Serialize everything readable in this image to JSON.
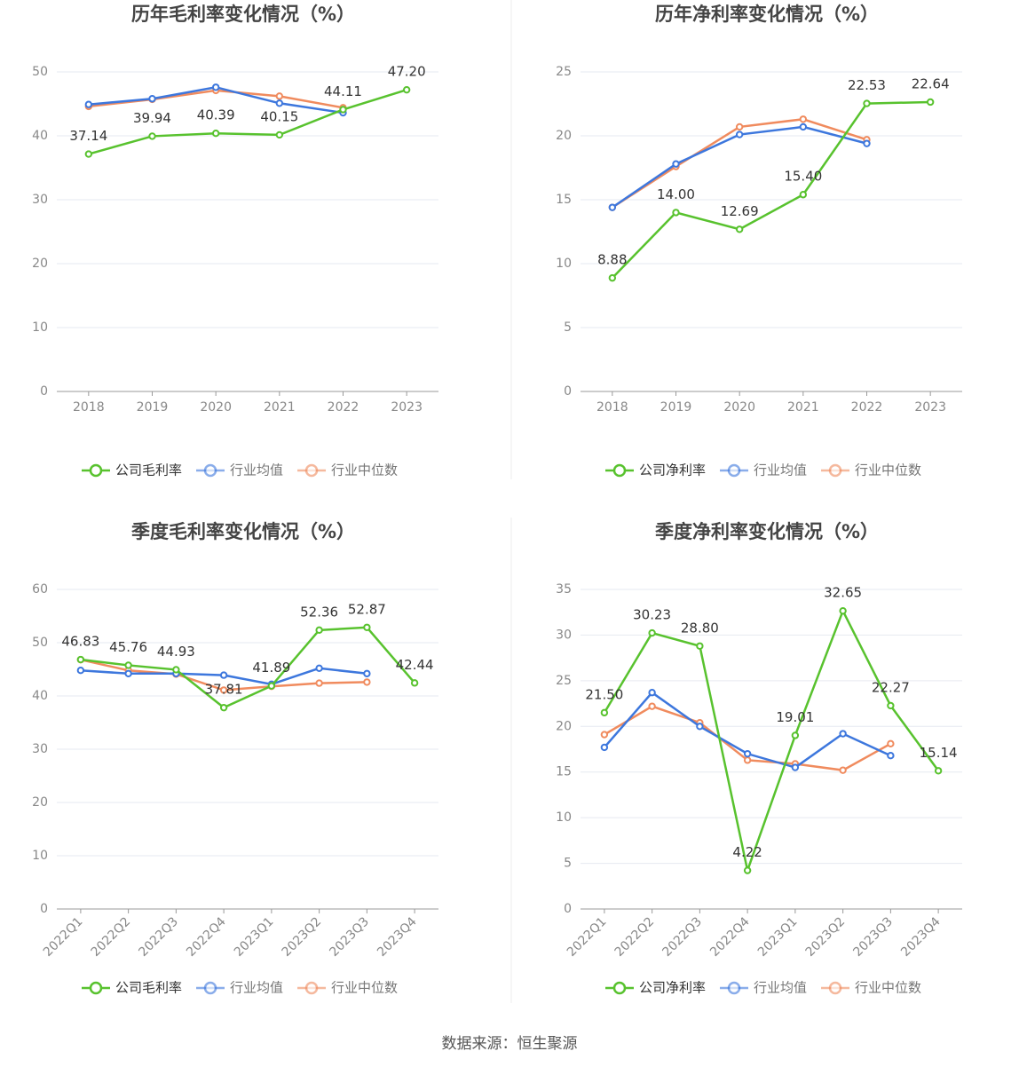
{
  "chart_data": [
    {
      "type": "line",
      "title": "历年毛利率变化情况（%）",
      "categories": [
        "2018",
        "2019",
        "2020",
        "2021",
        "2022",
        "2023"
      ],
      "ylim": [
        0,
        50
      ],
      "yticks": [
        0,
        10,
        20,
        30,
        40,
        50
      ],
      "grid": true,
      "series": [
        {
          "name": "公司毛利率",
          "color": "#58c22e",
          "values": [
            37.14,
            39.94,
            40.39,
            40.15,
            44.11,
            47.2
          ],
          "value_labels": [
            "37.14",
            "39.94",
            "40.39",
            "40.15",
            "44.11",
            "47.20"
          ]
        },
        {
          "name": "行业均值",
          "color": "#3d77dd",
          "values": [
            44.9,
            45.8,
            47.6,
            45.1,
            43.6,
            null
          ]
        },
        {
          "name": "行业中位数",
          "color": "#f08b5e",
          "values": [
            44.6,
            45.7,
            47.1,
            46.2,
            44.4,
            null
          ]
        }
      ]
    },
    {
      "type": "line",
      "title": "历年净利率变化情况（%）",
      "categories": [
        "2018",
        "2019",
        "2020",
        "2021",
        "2022",
        "2023"
      ],
      "ylim": [
        0,
        25
      ],
      "yticks": [
        0,
        5,
        10,
        15,
        20,
        25
      ],
      "grid": true,
      "series": [
        {
          "name": "公司净利率",
          "color": "#58c22e",
          "values": [
            8.88,
            14.0,
            12.69,
            15.4,
            22.53,
            22.64
          ],
          "value_labels": [
            "8.88",
            "14.00",
            "12.69",
            "15.40",
            "22.53",
            "22.64"
          ]
        },
        {
          "name": "行业均值",
          "color": "#3d77dd",
          "values": [
            14.4,
            17.8,
            20.1,
            20.7,
            19.4,
            null
          ]
        },
        {
          "name": "行业中位数",
          "color": "#f08b5e",
          "values": [
            14.4,
            17.6,
            20.7,
            21.3,
            19.7,
            null
          ]
        }
      ]
    },
    {
      "type": "line",
      "title": "季度毛利率变化情况（%）",
      "categories": [
        "2022Q1",
        "2022Q2",
        "2022Q3",
        "2022Q4",
        "2023Q1",
        "2023Q2",
        "2023Q3",
        "2023Q4"
      ],
      "ylim": [
        0,
        60
      ],
      "yticks": [
        0,
        10,
        20,
        30,
        40,
        50,
        60
      ],
      "grid": true,
      "series": [
        {
          "name": "公司毛利率",
          "color": "#58c22e",
          "values": [
            46.83,
            45.76,
            44.93,
            37.81,
            41.89,
            52.36,
            52.87,
            42.44
          ]
        },
        {
          "name": "行业均值",
          "color": "#3d77dd",
          "values": [
            44.8,
            44.2,
            44.2,
            43.9,
            42.2,
            45.2,
            44.2,
            null
          ]
        },
        {
          "name": "行业中位数",
          "color": "#f08b5e",
          "values": [
            46.8,
            44.8,
            44.1,
            41.1,
            41.8,
            42.4,
            42.6,
            null
          ]
        }
      ]
    },
    {
      "type": "line",
      "title": "季度净利率变化情况（%）",
      "categories": [
        "2022Q1",
        "2022Q2",
        "2022Q3",
        "2022Q4",
        "2023Q1",
        "2023Q2",
        "2023Q3",
        "2023Q4"
      ],
      "ylim": [
        0,
        35
      ],
      "yticks": [
        0,
        5,
        10,
        15,
        20,
        25,
        30,
        35
      ],
      "grid": true,
      "series": [
        {
          "name": "公司净利率",
          "color": "#58c22e",
          "values": [
            21.5,
            30.23,
            28.8,
            4.22,
            19.01,
            32.65,
            22.27,
            15.14
          ],
          "value_labels": [
            "21.50",
            "30.23",
            "28.80",
            "4.22",
            "19.01",
            "32.65",
            "22.27",
            "15.14"
          ]
        },
        {
          "name": "行业均值",
          "color": "#3d77dd",
          "values": [
            17.7,
            23.7,
            20.0,
            17.0,
            15.5,
            19.2,
            16.8,
            null
          ]
        },
        {
          "name": "行业中位数",
          "color": "#f08b5e",
          "values": [
            19.1,
            22.2,
            20.4,
            16.3,
            15.9,
            15.2,
            18.1,
            null
          ]
        }
      ]
    }
  ],
  "source": "数据来源：恒生聚源"
}
